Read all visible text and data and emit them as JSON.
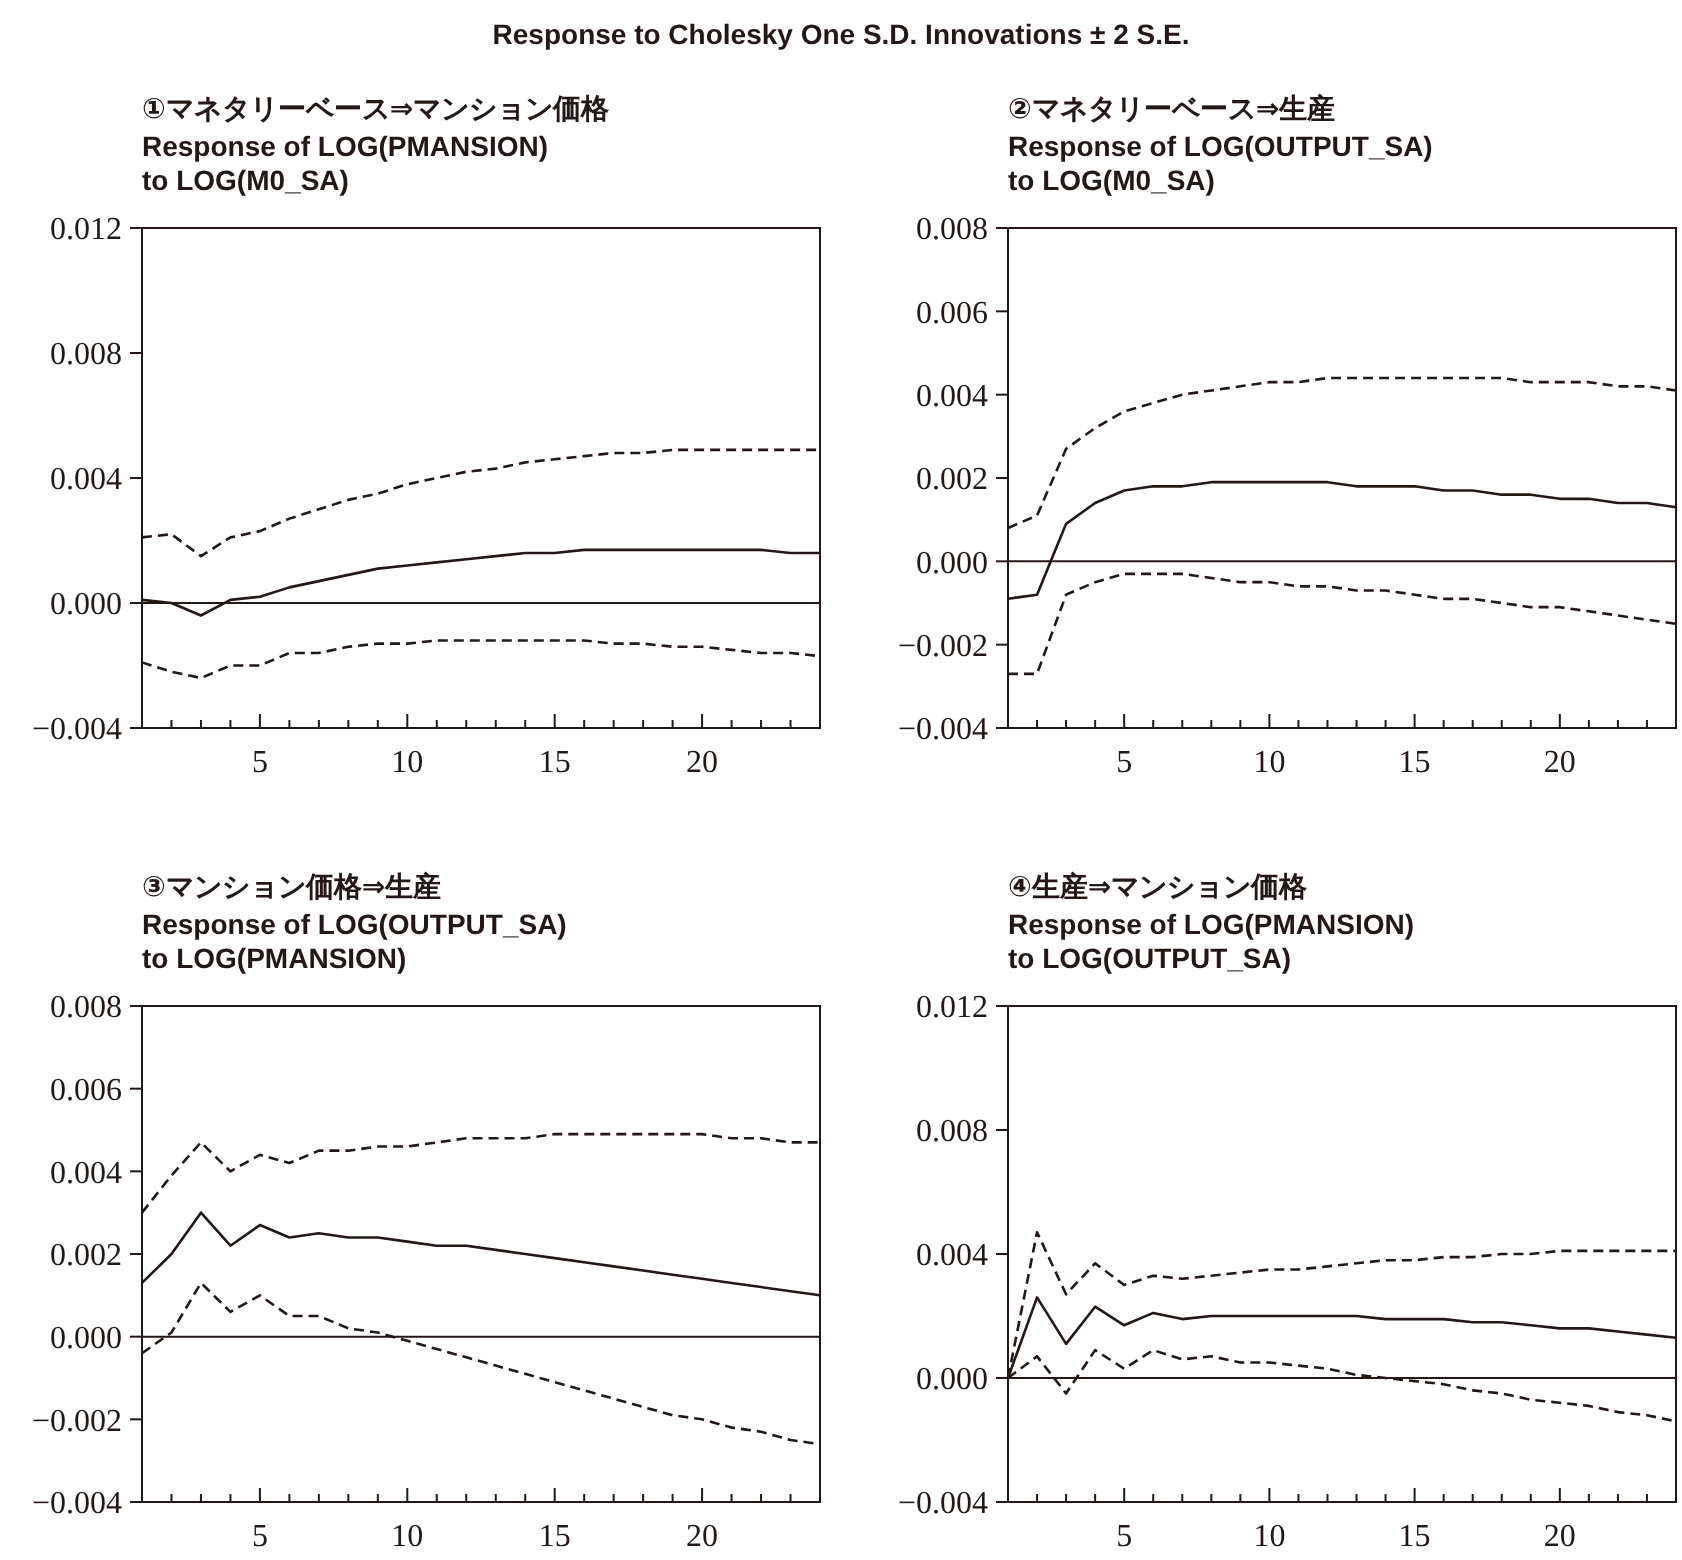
{
  "chart_data": [
    {
      "type": "line",
      "title": "①マネタリーベース⇒マンション価格",
      "subtitle": "Response of LOG(PMANSION)\nto LOG(M0_SA)",
      "annotations": [
        "Response to Cholesky One S.D. Innovations ± 2 S.E."
      ],
      "x": [
        1,
        2,
        3,
        4,
        5,
        6,
        7,
        8,
        9,
        10,
        11,
        12,
        13,
        14,
        15,
        16,
        17,
        18,
        19,
        20,
        21,
        22,
        23,
        24
      ],
      "xlim": [
        1,
        24
      ],
      "xticks": [
        {
          "value": 2,
          "label": null
        },
        {
          "value": 3,
          "label": null
        },
        {
          "value": 4,
          "label": null
        },
        5,
        {
          "value": 6,
          "label": null
        },
        {
          "value": 7,
          "label": null
        },
        {
          "value": 8,
          "label": null
        },
        {
          "value": 9,
          "label": null
        },
        10,
        {
          "value": 11,
          "label": null
        },
        {
          "value": 12,
          "label": null
        },
        {
          "value": 13,
          "label": null
        },
        {
          "value": 14,
          "label": null
        },
        15,
        {
          "value": 16,
          "label": null
        },
        {
          "value": 17,
          "label": null
        },
        {
          "value": 18,
          "label": null
        },
        {
          "value": 19,
          "label": null
        },
        20,
        {
          "value": 21,
          "label": null
        },
        {
          "value": 22,
          "label": null
        },
        {
          "value": 23,
          "label": null
        }
      ],
      "ylim": [
        -0.004,
        0.012
      ],
      "yticks": [
        {
          "value": -0.004,
          "label": "−0.004"
        },
        {
          "value": 0,
          "label": "0.000"
        },
        0.004,
        0.008,
        0.012
      ],
      "grid": false,
      "ref_lines": [
        {
          "axis": "y",
          "value": 0,
          "color": "#231815"
        }
      ],
      "series": [
        {
          "color": "#231815",
          "line_style": "solid",
          "values": [
            0.0001,
            0.0,
            -0.0004,
            0.0001,
            0.0002,
            0.0005,
            0.0007,
            0.0009,
            0.0011,
            0.0012,
            0.0013,
            0.0014,
            0.0015,
            0.0016,
            0.0016,
            0.0017,
            0.0017,
            0.0017,
            0.0017,
            0.0017,
            0.0017,
            0.0017,
            0.0016,
            0.0016
          ]
        },
        {
          "color": "#231815",
          "line_style": "dashed",
          "values": [
            0.0021,
            0.0022,
            0.0015,
            0.0021,
            0.0023,
            0.0027,
            0.003,
            0.0033,
            0.0035,
            0.0038,
            0.004,
            0.0042,
            0.0043,
            0.0045,
            0.0046,
            0.0047,
            0.0048,
            0.0048,
            0.0049,
            0.0049,
            0.0049,
            0.0049,
            0.0049,
            0.0049
          ]
        },
        {
          "color": "#231815",
          "line_style": "dashed",
          "values": [
            -0.0019,
            -0.0022,
            -0.0024,
            -0.002,
            -0.002,
            -0.0016,
            -0.0016,
            -0.0014,
            -0.0013,
            -0.0013,
            -0.0012,
            -0.0012,
            -0.0012,
            -0.0012,
            -0.0012,
            -0.0012,
            -0.0013,
            -0.0013,
            -0.0014,
            -0.0014,
            -0.0015,
            -0.0016,
            -0.0016,
            -0.0017
          ]
        }
      ]
    },
    {
      "type": "line",
      "title": "②マネタリーベース⇒生産",
      "subtitle": "Response of LOG(OUTPUT_SA)\nto LOG(M0_SA)",
      "x": [
        1,
        2,
        3,
        4,
        5,
        6,
        7,
        8,
        9,
        10,
        11,
        12,
        13,
        14,
        15,
        16,
        17,
        18,
        19,
        20,
        21,
        22,
        23,
        24
      ],
      "xlim": [
        1,
        24
      ],
      "xticks": [
        {
          "value": 2,
          "label": null
        },
        {
          "value": 3,
          "label": null
        },
        {
          "value": 4,
          "label": null
        },
        5,
        {
          "value": 6,
          "label": null
        },
        {
          "value": 7,
          "label": null
        },
        {
          "value": 8,
          "label": null
        },
        {
          "value": 9,
          "label": null
        },
        10,
        {
          "value": 11,
          "label": null
        },
        {
          "value": 12,
          "label": null
        },
        {
          "value": 13,
          "label": null
        },
        {
          "value": 14,
          "label": null
        },
        15,
        {
          "value": 16,
          "label": null
        },
        {
          "value": 17,
          "label": null
        },
        {
          "value": 18,
          "label": null
        },
        {
          "value": 19,
          "label": null
        },
        20,
        {
          "value": 21,
          "label": null
        },
        {
          "value": 22,
          "label": null
        },
        {
          "value": 23,
          "label": null
        }
      ],
      "ylim": [
        -0.004,
        0.008
      ],
      "yticks": [
        {
          "value": -0.004,
          "label": "−0.004"
        },
        {
          "value": -0.002,
          "label": "−0.002"
        },
        {
          "value": 0,
          "label": "0.000"
        },
        0.002,
        0.004,
        0.006,
        0.008
      ],
      "grid": false,
      "ref_lines": [
        {
          "axis": "y",
          "value": 0,
          "color": "#231815"
        }
      ],
      "series": [
        {
          "color": "#231815",
          "line_style": "solid",
          "values": [
            -0.0009,
            -0.0008,
            0.0009,
            0.0014,
            0.0017,
            0.0018,
            0.0018,
            0.0019,
            0.0019,
            0.0019,
            0.0019,
            0.0019,
            0.0018,
            0.0018,
            0.0018,
            0.0017,
            0.0017,
            0.0016,
            0.0016,
            0.0015,
            0.0015,
            0.0014,
            0.0014,
            0.0013
          ]
        },
        {
          "color": "#231815",
          "line_style": "dashed",
          "values": [
            0.0008,
            0.0011,
            0.0027,
            0.0032,
            0.0036,
            0.0038,
            0.004,
            0.0041,
            0.0042,
            0.0043,
            0.0043,
            0.0044,
            0.0044,
            0.0044,
            0.0044,
            0.0044,
            0.0044,
            0.0044,
            0.0043,
            0.0043,
            0.0043,
            0.0042,
            0.0042,
            0.0041
          ]
        },
        {
          "color": "#231815",
          "line_style": "dashed",
          "values": [
            -0.0027,
            -0.0027,
            -0.0008,
            -0.0005,
            -0.0003,
            -0.0003,
            -0.0003,
            -0.0004,
            -0.0005,
            -0.0005,
            -0.0006,
            -0.0006,
            -0.0007,
            -0.0007,
            -0.0008,
            -0.0009,
            -0.0009,
            -0.001,
            -0.0011,
            -0.0011,
            -0.0012,
            -0.0013,
            -0.0014,
            -0.0015
          ]
        }
      ]
    },
    {
      "type": "line",
      "title": "③マンション価格⇒生産",
      "subtitle": "Response of LOG(OUTPUT_SA)\nto LOG(PMANSION)",
      "x": [
        1,
        2,
        3,
        4,
        5,
        6,
        7,
        8,
        9,
        10,
        11,
        12,
        13,
        14,
        15,
        16,
        17,
        18,
        19,
        20,
        21,
        22,
        23,
        24
      ],
      "xlim": [
        1,
        24
      ],
      "xticks": [
        {
          "value": 2,
          "label": null
        },
        {
          "value": 3,
          "label": null
        },
        {
          "value": 4,
          "label": null
        },
        5,
        {
          "value": 6,
          "label": null
        },
        {
          "value": 7,
          "label": null
        },
        {
          "value": 8,
          "label": null
        },
        {
          "value": 9,
          "label": null
        },
        10,
        {
          "value": 11,
          "label": null
        },
        {
          "value": 12,
          "label": null
        },
        {
          "value": 13,
          "label": null
        },
        {
          "value": 14,
          "label": null
        },
        15,
        {
          "value": 16,
          "label": null
        },
        {
          "value": 17,
          "label": null
        },
        {
          "value": 18,
          "label": null
        },
        {
          "value": 19,
          "label": null
        },
        20,
        {
          "value": 21,
          "label": null
        },
        {
          "value": 22,
          "label": null
        },
        {
          "value": 23,
          "label": null
        }
      ],
      "ylim": [
        -0.004,
        0.008
      ],
      "yticks": [
        {
          "value": -0.004,
          "label": "−0.004"
        },
        {
          "value": -0.002,
          "label": "−0.002"
        },
        {
          "value": 0,
          "label": "0.000"
        },
        0.002,
        0.004,
        0.006,
        0.008
      ],
      "grid": false,
      "ref_lines": [
        {
          "axis": "y",
          "value": 0,
          "color": "#231815"
        }
      ],
      "series": [
        {
          "color": "#231815",
          "line_style": "solid",
          "values": [
            0.0013,
            0.002,
            0.003,
            0.0022,
            0.0027,
            0.0024,
            0.0025,
            0.0024,
            0.0024,
            0.0023,
            0.0022,
            0.0022,
            0.0021,
            0.002,
            0.0019,
            0.0018,
            0.0017,
            0.0016,
            0.0015,
            0.0014,
            0.0013,
            0.0012,
            0.0011,
            0.001
          ]
        },
        {
          "color": "#231815",
          "line_style": "dashed",
          "values": [
            0.003,
            0.0039,
            0.0047,
            0.004,
            0.0044,
            0.0042,
            0.0045,
            0.0045,
            0.0046,
            0.0046,
            0.0047,
            0.0048,
            0.0048,
            0.0048,
            0.0049,
            0.0049,
            0.0049,
            0.0049,
            0.0049,
            0.0049,
            0.0048,
            0.0048,
            0.0047,
            0.0047
          ]
        },
        {
          "color": "#231815",
          "line_style": "dashed",
          "values": [
            -0.0004,
            0.0001,
            0.0013,
            0.0006,
            0.001,
            0.0005,
            0.0005,
            0.0002,
            0.0001,
            -0.0001,
            -0.0003,
            -0.0005,
            -0.0007,
            -0.0009,
            -0.0011,
            -0.0013,
            -0.0015,
            -0.0017,
            -0.0019,
            -0.002,
            -0.0022,
            -0.0023,
            -0.0025,
            -0.0026
          ]
        }
      ]
    },
    {
      "type": "line",
      "title": "④生産⇒マンション価格",
      "subtitle": "Response of LOG(PMANSION)\nto LOG(OUTPUT_SA)",
      "x": [
        1,
        2,
        3,
        4,
        5,
        6,
        7,
        8,
        9,
        10,
        11,
        12,
        13,
        14,
        15,
        16,
        17,
        18,
        19,
        20,
        21,
        22,
        23,
        24
      ],
      "xlim": [
        1,
        24
      ],
      "xticks": [
        {
          "value": 2,
          "label": null
        },
        {
          "value": 3,
          "label": null
        },
        {
          "value": 4,
          "label": null
        },
        5,
        {
          "value": 6,
          "label": null
        },
        {
          "value": 7,
          "label": null
        },
        {
          "value": 8,
          "label": null
        },
        {
          "value": 9,
          "label": null
        },
        10,
        {
          "value": 11,
          "label": null
        },
        {
          "value": 12,
          "label": null
        },
        {
          "value": 13,
          "label": null
        },
        {
          "value": 14,
          "label": null
        },
        15,
        {
          "value": 16,
          "label": null
        },
        {
          "value": 17,
          "label": null
        },
        {
          "value": 18,
          "label": null
        },
        {
          "value": 19,
          "label": null
        },
        20,
        {
          "value": 21,
          "label": null
        },
        {
          "value": 22,
          "label": null
        },
        {
          "value": 23,
          "label": null
        }
      ],
      "ylim": [
        -0.004,
        0.012
      ],
      "yticks": [
        {
          "value": -0.004,
          "label": "−0.004"
        },
        {
          "value": 0,
          "label": "0.000"
        },
        0.004,
        0.008,
        0.012
      ],
      "grid": false,
      "ref_lines": [
        {
          "axis": "y",
          "value": 0,
          "color": "#231815"
        }
      ],
      "series": [
        {
          "color": "#231815",
          "line_style": "solid",
          "values": [
            0.0,
            0.0026,
            0.0011,
            0.0023,
            0.0017,
            0.0021,
            0.0019,
            0.002,
            0.002,
            0.002,
            0.002,
            0.002,
            0.002,
            0.0019,
            0.0019,
            0.0019,
            0.0018,
            0.0018,
            0.0017,
            0.0016,
            0.0016,
            0.0015,
            0.0014,
            0.0013
          ]
        },
        {
          "color": "#231815",
          "line_style": "dashed",
          "values": [
            0.0,
            0.0047,
            0.0027,
            0.0037,
            0.003,
            0.0033,
            0.0032,
            0.0033,
            0.0034,
            0.0035,
            0.0035,
            0.0036,
            0.0037,
            0.0038,
            0.0038,
            0.0039,
            0.0039,
            0.004,
            0.004,
            0.0041,
            0.0041,
            0.0041,
            0.0041,
            0.0041
          ]
        },
        {
          "color": "#231815",
          "line_style": "dashed",
          "values": [
            0.0,
            0.0007,
            -0.0005,
            0.0009,
            0.0003,
            0.0009,
            0.0006,
            0.0007,
            0.0005,
            0.0005,
            0.0004,
            0.0003,
            0.0001,
            0.0,
            -0.0001,
            -0.0002,
            -0.0004,
            -0.0005,
            -0.0007,
            -0.0008,
            -0.0009,
            -0.0011,
            -0.0012,
            -0.0014
          ]
        }
      ]
    }
  ]
}
